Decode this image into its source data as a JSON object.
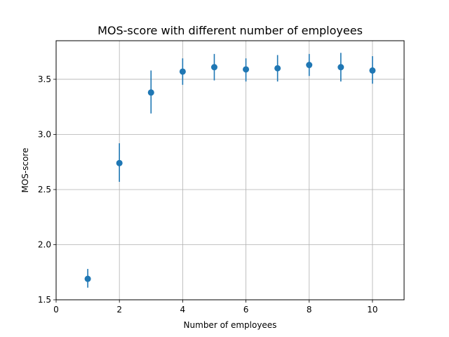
{
  "chart_data": {
    "type": "scatter",
    "title": "MOS-score with different number of employees",
    "xlabel": "Number of employees",
    "ylabel": "MOS-score",
    "xlim": [
      0,
      11
    ],
    "ylim": [
      1.5,
      3.85
    ],
    "xticks": [
      0,
      2,
      4,
      6,
      8,
      10
    ],
    "yticks": [
      1.5,
      2.0,
      2.5,
      3.0,
      3.5
    ],
    "xtick_labels": [
      "0",
      "2",
      "4",
      "6",
      "8",
      "10"
    ],
    "ytick_labels": [
      "1.5",
      "2.0",
      "2.5",
      "3.0",
      "3.5"
    ],
    "grid": true,
    "color": "#1f77b4",
    "points": [
      {
        "x": 1,
        "y": 1.69,
        "err_low": 1.61,
        "err_high": 1.78
      },
      {
        "x": 2,
        "y": 2.74,
        "err_low": 2.57,
        "err_high": 2.92
      },
      {
        "x": 3,
        "y": 3.38,
        "err_low": 3.19,
        "err_high": 3.58
      },
      {
        "x": 4,
        "y": 3.57,
        "err_low": 3.45,
        "err_high": 3.69
      },
      {
        "x": 5,
        "y": 3.61,
        "err_low": 3.49,
        "err_high": 3.73
      },
      {
        "x": 6,
        "y": 3.59,
        "err_low": 3.48,
        "err_high": 3.69
      },
      {
        "x": 7,
        "y": 3.6,
        "err_low": 3.48,
        "err_high": 3.72
      },
      {
        "x": 8,
        "y": 3.63,
        "err_low": 3.53,
        "err_high": 3.73
      },
      {
        "x": 9,
        "y": 3.61,
        "err_low": 3.48,
        "err_high": 3.74
      },
      {
        "x": 10,
        "y": 3.58,
        "err_low": 3.46,
        "err_high": 3.71
      }
    ]
  }
}
